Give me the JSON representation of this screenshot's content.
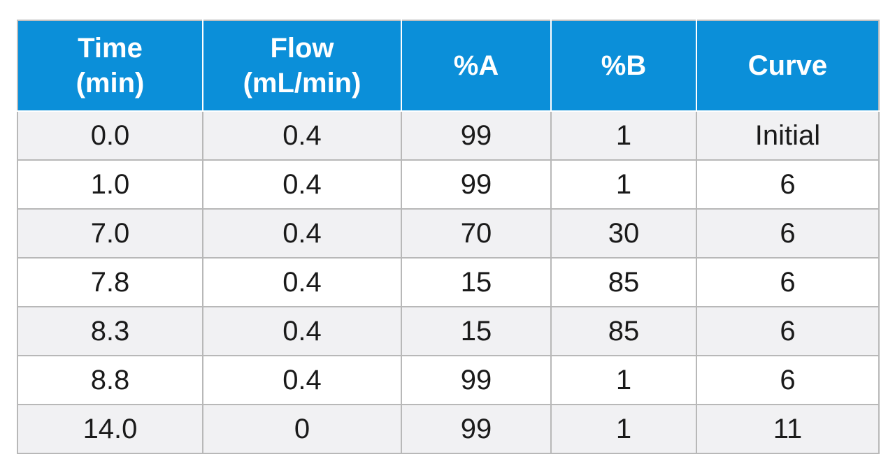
{
  "table": {
    "headers": [
      {
        "line1": "Time",
        "line2": "(min)"
      },
      {
        "line1": "Flow",
        "line2": "(mL/min)"
      },
      {
        "line1": "%A",
        "line2": ""
      },
      {
        "line1": "%B",
        "line2": ""
      },
      {
        "line1": "Curve",
        "line2": ""
      }
    ],
    "rows": [
      [
        "0.0",
        "0.4",
        "99",
        "1",
        "Initial"
      ],
      [
        "1.0",
        "0.4",
        "99",
        "1",
        "6"
      ],
      [
        "7.0",
        "0.4",
        "70",
        "30",
        "6"
      ],
      [
        "7.8",
        "0.4",
        "15",
        "85",
        "6"
      ],
      [
        "8.3",
        "0.4",
        "15",
        "85",
        "6"
      ],
      [
        "8.8",
        "0.4",
        "99",
        "1",
        "6"
      ],
      [
        "14.0",
        "0",
        "99",
        "1",
        "11"
      ]
    ]
  },
  "colors": {
    "header_bg": "#0b8fd9",
    "header_text": "#ffffff",
    "row_shaded": "#f1f1f3",
    "row_plain": "#ffffff",
    "grid": "#b8b8b8"
  }
}
